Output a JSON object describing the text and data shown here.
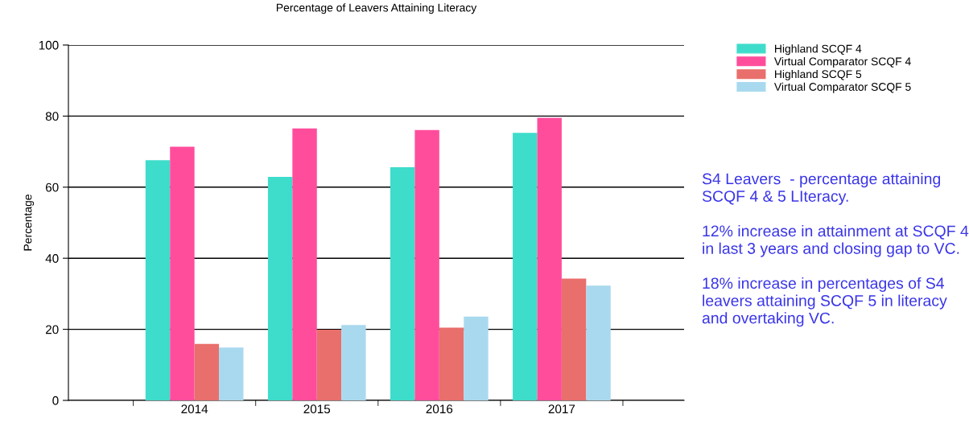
{
  "chart_data": {
    "type": "bar",
    "title": "Percentage of Leavers Attaining Literacy",
    "ylabel": "Percentage",
    "categories": [
      "2014",
      "2015",
      "2016",
      "2017"
    ],
    "series": [
      {
        "name": "Highland SCQF 4",
        "color": "#3edccb",
        "values": [
          67.6,
          62.9,
          65.6,
          75.3
        ]
      },
      {
        "name": "Virtual Comparator SCQF 4",
        "color": "#ff4d9c",
        "values": [
          71.4,
          76.5,
          76.1,
          79.5
        ]
      },
      {
        "name": "Highland SCQF 5",
        "color": "#e96f6c",
        "values": [
          15.9,
          19.9,
          20.5,
          34.3
        ]
      },
      {
        "name": "Virtual Comparator SCQF 5",
        "color": "#a9d9ee",
        "values": [
          14.9,
          21.2,
          23.6,
          32.3
        ]
      }
    ],
    "ylim": [
      0,
      100
    ],
    "yticks": [
      0,
      20,
      40,
      60,
      80,
      100
    ],
    "grid": "y",
    "legend": "top right",
    "annotations": [
      "S4 Leavers  - percentage attaining SCQF 4 & 5 LIteracy.\n\n12% increase in attainment at SCQF 4 in last 3 years and closing gap to VC.\n\n18% increase in percentages of S4 leavers attaining SCQF 5 in literacy and overtaking VC."
    ]
  }
}
